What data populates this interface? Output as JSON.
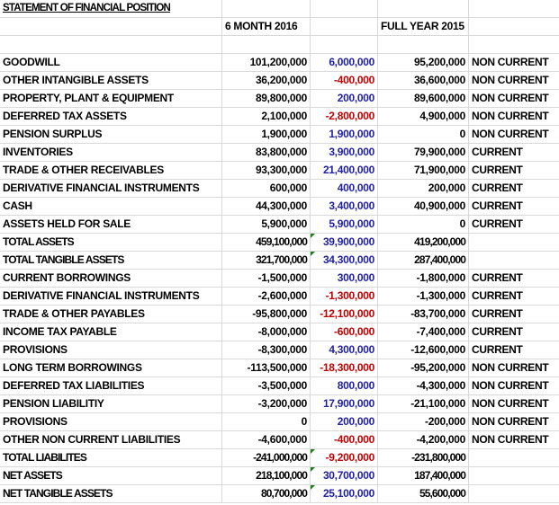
{
  "sheet": {
    "title": "STATEMENT OF FINANCIAL POSITION",
    "headers": {
      "col1": "6 MONTH 2016",
      "col2": "",
      "col3": "FULL YEAR 2015",
      "col4": ""
    },
    "colors": {
      "positive_change": "#1f1fa3",
      "negative_change": "#c00000",
      "gridline": "#d9d9d9",
      "formula_indicator": "#1a7f1a"
    },
    "rows": [
      {
        "label": "GOODWILL",
        "m2016": "101,200,000",
        "change": "6,000,000",
        "change_sign": "pos",
        "fy2015": "95,200,000",
        "class": "NON CURRENT"
      },
      {
        "label": "OTHER INTANGIBLE ASSETS",
        "m2016": "36,200,000",
        "change": "-400,000",
        "change_sign": "neg",
        "fy2015": "36,600,000",
        "class": "NON CURRENT"
      },
      {
        "label": "PROPERTY, PLANT & EQUIPMENT",
        "m2016": "89,800,000",
        "change": "200,000",
        "change_sign": "pos",
        "fy2015": "89,600,000",
        "class": "NON CURRENT"
      },
      {
        "label": "DEFERRED TAX ASSETS",
        "m2016": "2,100,000",
        "change": "-2,800,000",
        "change_sign": "neg",
        "fy2015": "4,900,000",
        "class": "NON CURRENT"
      },
      {
        "label": "PENSION SURPLUS",
        "m2016": "1,900,000",
        "change": "1,900,000",
        "change_sign": "pos",
        "fy2015": "0",
        "class": "NON CURRENT"
      },
      {
        "label": "INVENTORIES",
        "m2016": "83,800,000",
        "change": "3,900,000",
        "change_sign": "pos",
        "fy2015": "79,900,000",
        "class": "CURRENT"
      },
      {
        "label": "TRADE & OTHER RECEIVABLES",
        "m2016": "93,300,000",
        "change": "21,400,000",
        "change_sign": "pos",
        "fy2015": "71,900,000",
        "class": "CURRENT"
      },
      {
        "label": "DERIVATIVE FINANCIAL INSTRUMENTS",
        "m2016": "600,000",
        "change": "400,000",
        "change_sign": "pos",
        "fy2015": "200,000",
        "class": "CURRENT"
      },
      {
        "label": "CASH",
        "m2016": "44,300,000",
        "change": "3,400,000",
        "change_sign": "pos",
        "fy2015": "40,900,000",
        "class": "CURRENT"
      },
      {
        "label": "ASSETS HELD FOR SALE",
        "m2016": "5,900,000",
        "change": "5,900,000",
        "change_sign": "pos",
        "fy2015": "0",
        "class": "CURRENT"
      },
      {
        "label": "TOTAL ASSETS",
        "m2016": "459,100,000",
        "change": "39,900,000",
        "change_sign": "pos",
        "fy2015": "419,200,000",
        "class": "",
        "total": true
      },
      {
        "label": "TOTAL TANGIBLE ASSETS",
        "m2016": "321,700,000",
        "change": "34,300,000",
        "change_sign": "pos",
        "fy2015": "287,400,000",
        "class": "",
        "total": true
      },
      {
        "label": "CURRENT BORROWINGS",
        "m2016": "-1,500,000",
        "change": "300,000",
        "change_sign": "pos",
        "fy2015": "-1,800,000",
        "class": "CURRENT"
      },
      {
        "label": "DERIVATIVE FINANCIAL INSTRUMENTS",
        "m2016": "-2,600,000",
        "change": "-1,300,000",
        "change_sign": "neg",
        "fy2015": "-1,300,000",
        "class": "CURRENT"
      },
      {
        "label": "TRADE & OTHER PAYABLES",
        "m2016": "-95,800,000",
        "change": "-12,100,000",
        "change_sign": "neg",
        "fy2015": "-83,700,000",
        "class": "CURRENT"
      },
      {
        "label": "INCOME TAX PAYABLE",
        "m2016": "-8,000,000",
        "change": "-600,000",
        "change_sign": "neg",
        "fy2015": "-7,400,000",
        "class": "CURRENT"
      },
      {
        "label": "PROVISIONS",
        "m2016": "-8,300,000",
        "change": "4,300,000",
        "change_sign": "pos",
        "fy2015": "-12,600,000",
        "class": "CURRENT"
      },
      {
        "label": "LONG TERM BORROWINGS",
        "m2016": "-113,500,000",
        "change": "-18,300,000",
        "change_sign": "neg",
        "fy2015": "-95,200,000",
        "class": "NON CURRENT"
      },
      {
        "label": "DEFERRED TAX LIABILITIES",
        "m2016": "-3,500,000",
        "change": "800,000",
        "change_sign": "pos",
        "fy2015": "-4,300,000",
        "class": "NON CURRENT"
      },
      {
        "label": "PENSION LIABILITIY",
        "m2016": "-3,200,000",
        "change": "17,900,000",
        "change_sign": "pos",
        "fy2015": "-21,100,000",
        "class": "NON CURRENT"
      },
      {
        "label": "PROVISIONS",
        "m2016": "0",
        "change": "200,000",
        "change_sign": "pos",
        "fy2015": "-200,000",
        "class": "NON CURRENT"
      },
      {
        "label": "OTHER NON CURRENT LIABILITIES",
        "m2016": "-4,600,000",
        "change": "-400,000",
        "change_sign": "neg",
        "fy2015": "-4,200,000",
        "class": "NON CURRENT"
      },
      {
        "label": "TOTAL LIABILITES",
        "m2016": "-241,000,000",
        "change": "-9,200,000",
        "change_sign": "neg",
        "fy2015": "-231,800,000",
        "class": "",
        "total": true
      },
      {
        "label": "NET ASSETS",
        "m2016": "218,100,000",
        "change": "30,700,000",
        "change_sign": "pos",
        "fy2015": "187,400,000",
        "class": "",
        "total": true
      },
      {
        "label": "NET TANGIBLE ASSETS",
        "m2016": "80,700,000",
        "change": "25,100,000",
        "change_sign": "pos",
        "fy2015": "55,600,000",
        "class": "",
        "total": true
      }
    ]
  }
}
